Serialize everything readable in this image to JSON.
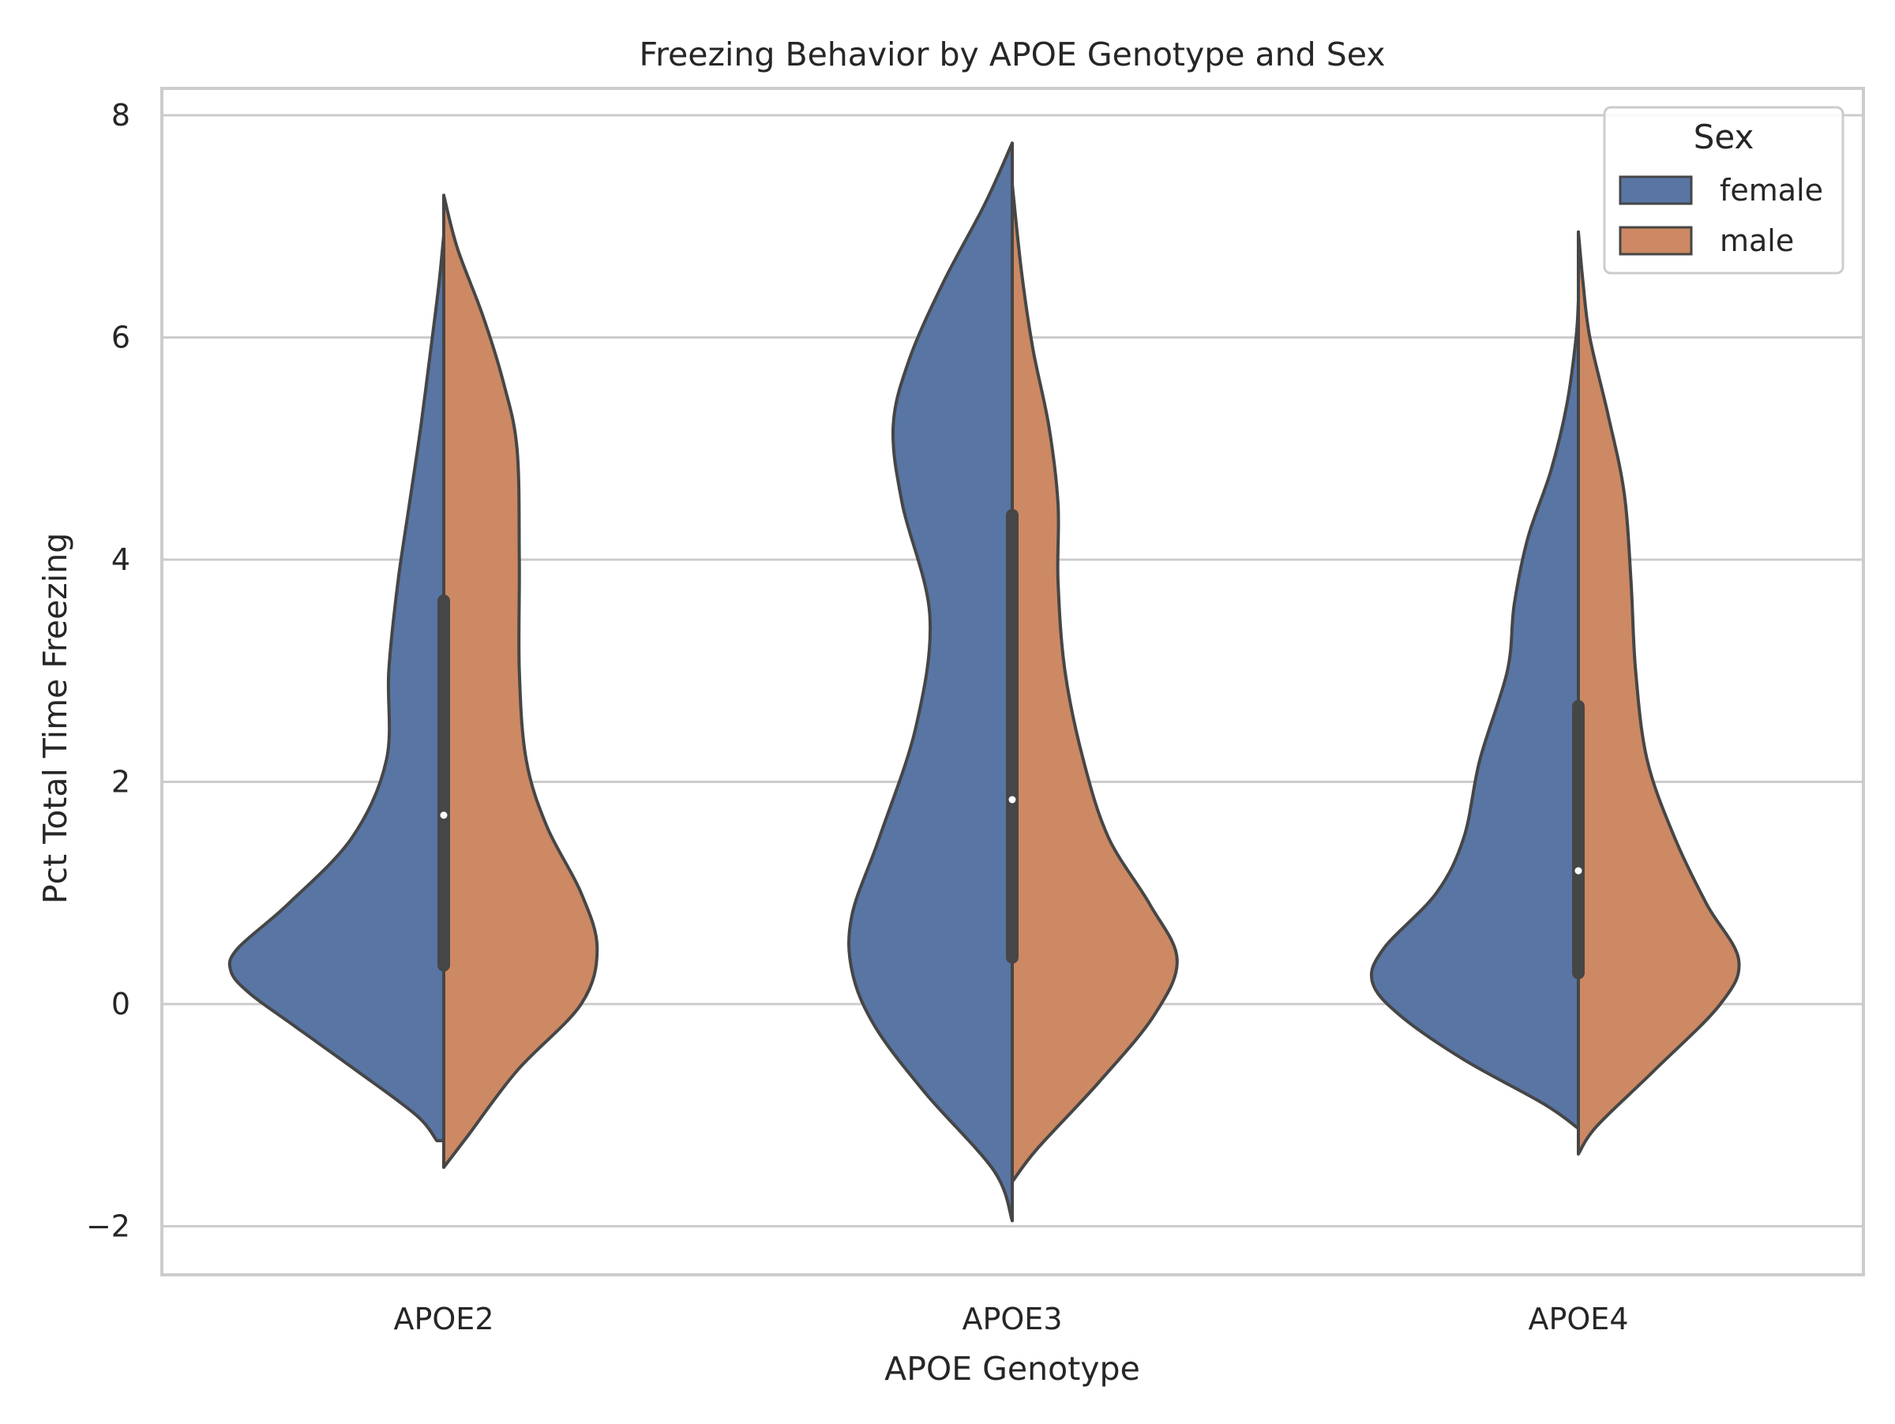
{
  "chart_data": {
    "type": "violin",
    "split": true,
    "title": "Freezing Behavior by APOE Genotype and Sex",
    "xlabel": "APOE Genotype",
    "ylabel": "Pct Total Time Freezing",
    "categories": [
      "APOE2",
      "APOE3",
      "APOE4"
    ],
    "ylim": [
      -2.4,
      8.25
    ],
    "yticks": [
      -2,
      0,
      2,
      4,
      6,
      8
    ],
    "ytick_labels": [
      "−2",
      "0",
      "2",
      "4",
      "6",
      "8"
    ],
    "grid": "horizontal",
    "legend": {
      "title": "Sex",
      "position": "top-right",
      "entries": [
        "female",
        "male"
      ]
    },
    "colors": {
      "female": "#5875a4",
      "male": "#cc8963",
      "outline": "#464646",
      "grid": "#cccccc",
      "axes_edge": "#cccccc",
      "median": "#ffffff"
    },
    "series": [
      {
        "name": "female",
        "violins": [
          {
            "category": "APOE2",
            "min": -1.23,
            "max": 6.92,
            "profile": [
              [
                -1.23,
                0.03
              ],
              [
                -1.0,
                0.12
              ],
              [
                -0.6,
                0.38
              ],
              [
                -0.2,
                0.65
              ],
              [
                0.1,
                0.85
              ],
              [
                0.3,
                0.93
              ],
              [
                0.5,
                0.9
              ],
              [
                0.9,
                0.68
              ],
              [
                1.5,
                0.4
              ],
              [
                2.2,
                0.25
              ],
              [
                3.0,
                0.24
              ],
              [
                3.8,
                0.2
              ],
              [
                4.5,
                0.15
              ],
              [
                5.2,
                0.1
              ],
              [
                6.0,
                0.05
              ],
              [
                6.5,
                0.02
              ],
              [
                6.92,
                0.0
              ]
            ]
          },
          {
            "category": "APOE3",
            "min": -1.95,
            "max": 7.75,
            "profile": [
              [
                -1.95,
                0.0
              ],
              [
                -1.5,
                0.08
              ],
              [
                -0.8,
                0.38
              ],
              [
                -0.2,
                0.6
              ],
              [
                0.3,
                0.7
              ],
              [
                0.8,
                0.7
              ],
              [
                1.5,
                0.58
              ],
              [
                2.5,
                0.42
              ],
              [
                3.5,
                0.36
              ],
              [
                4.5,
                0.48
              ],
              [
                5.2,
                0.52
              ],
              [
                5.8,
                0.45
              ],
              [
                6.5,
                0.3
              ],
              [
                7.2,
                0.12
              ],
              [
                7.75,
                0.0
              ]
            ]
          },
          {
            "category": "APOE4",
            "min": -1.12,
            "max": 6.33,
            "profile": [
              [
                -1.12,
                0.0
              ],
              [
                -0.9,
                0.15
              ],
              [
                -0.5,
                0.5
              ],
              [
                -0.1,
                0.78
              ],
              [
                0.2,
                0.9
              ],
              [
                0.5,
                0.85
              ],
              [
                1.0,
                0.62
              ],
              [
                1.5,
                0.5
              ],
              [
                2.2,
                0.43
              ],
              [
                3.0,
                0.31
              ],
              [
                3.6,
                0.28
              ],
              [
                4.2,
                0.22
              ],
              [
                4.8,
                0.12
              ],
              [
                5.4,
                0.05
              ],
              [
                6.0,
                0.01
              ],
              [
                6.33,
                0.0
              ]
            ]
          }
        ]
      },
      {
        "name": "male",
        "violins": [
          {
            "category": "APOE2",
            "min": -1.47,
            "max": 7.28,
            "profile": [
              [
                -1.47,
                0.0
              ],
              [
                -1.2,
                0.1
              ],
              [
                -0.6,
                0.32
              ],
              [
                0.0,
                0.6
              ],
              [
                0.5,
                0.67
              ],
              [
                1.0,
                0.6
              ],
              [
                1.6,
                0.45
              ],
              [
                2.2,
                0.36
              ],
              [
                3.0,
                0.33
              ],
              [
                4.0,
                0.33
              ],
              [
                5.0,
                0.32
              ],
              [
                5.6,
                0.26
              ],
              [
                6.2,
                0.17
              ],
              [
                6.8,
                0.06
              ],
              [
                7.28,
                0.0
              ]
            ]
          },
          {
            "category": "APOE3",
            "min": -1.6,
            "max": 7.38,
            "profile": [
              [
                -1.6,
                0.0
              ],
              [
                -1.3,
                0.11
              ],
              [
                -0.7,
                0.38
              ],
              [
                -0.1,
                0.62
              ],
              [
                0.4,
                0.72
              ],
              [
                0.9,
                0.6
              ],
              [
                1.5,
                0.42
              ],
              [
                2.2,
                0.31
              ],
              [
                3.0,
                0.23
              ],
              [
                3.8,
                0.2
              ],
              [
                4.5,
                0.2
              ],
              [
                5.2,
                0.16
              ],
              [
                5.9,
                0.09
              ],
              [
                6.6,
                0.04
              ],
              [
                7.38,
                0.0
              ]
            ]
          },
          {
            "category": "APOE4",
            "min": -1.35,
            "max": 6.95,
            "profile": [
              [
                -1.35,
                0.0
              ],
              [
                -1.1,
                0.08
              ],
              [
                -0.6,
                0.33
              ],
              [
                0.0,
                0.62
              ],
              [
                0.4,
                0.7
              ],
              [
                0.9,
                0.56
              ],
              [
                1.5,
                0.42
              ],
              [
                2.2,
                0.3
              ],
              [
                3.0,
                0.25
              ],
              [
                3.8,
                0.23
              ],
              [
                4.6,
                0.2
              ],
              [
                5.3,
                0.13
              ],
              [
                6.0,
                0.05
              ],
              [
                6.5,
                0.02
              ],
              [
                6.95,
                0.0
              ]
            ]
          }
        ]
      }
    ],
    "boxes": [
      {
        "category": "APOE2",
        "q1": 0.35,
        "median": 1.7,
        "q3": 3.63
      },
      {
        "category": "APOE3",
        "q1": 0.42,
        "median": 1.84,
        "q3": 4.4
      },
      {
        "category": "APOE4",
        "q1": 0.28,
        "median": 1.2,
        "q3": 2.68
      }
    ]
  }
}
